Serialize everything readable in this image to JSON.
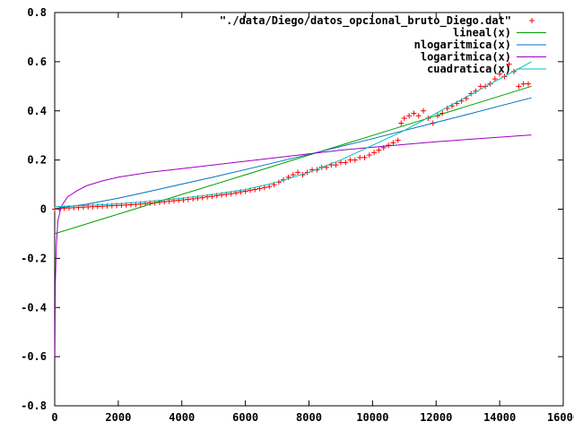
{
  "chart_data": {
    "type": "scatter",
    "xlim": [
      0,
      16000
    ],
    "ylim": [
      -0.8,
      0.8
    ],
    "x_ticks": [
      0,
      2000,
      4000,
      6000,
      8000,
      10000,
      12000,
      14000,
      16000
    ],
    "y_ticks": [
      -0.8,
      -0.6,
      -0.4,
      -0.2,
      0,
      0.2,
      0.4,
      0.6,
      0.8
    ],
    "x_tick_labels": [
      "0",
      "2000",
      "4000",
      "6000",
      "8000",
      "10000",
      "12000",
      "14000",
      "16000"
    ],
    "y_tick_labels": [
      "-0.8",
      "-0.6",
      "-0.4",
      "-0.2",
      "0",
      "0.2",
      "0.4",
      "0.6",
      "0.8"
    ],
    "grid": false,
    "legend_position": "top-right",
    "series": [
      {
        "name": "\"./data/Diego/datos_opcional_bruto_Diego.dat\"",
        "kind": "points",
        "marker": "plus",
        "color": "#ff0000",
        "x": [
          0,
          150,
          300,
          450,
          600,
          750,
          900,
          1050,
          1200,
          1350,
          1500,
          1650,
          1800,
          1950,
          2100,
          2250,
          2400,
          2550,
          2700,
          2850,
          3000,
          3150,
          3300,
          3450,
          3600,
          3750,
          3900,
          4050,
          4200,
          4350,
          4500,
          4650,
          4800,
          4950,
          5100,
          5250,
          5400,
          5550,
          5700,
          5850,
          6000,
          6150,
          6300,
          6450,
          6600,
          6750,
          6900,
          7050,
          7200,
          7350,
          7500,
          7650,
          7800,
          7950,
          8100,
          8250,
          8400,
          8550,
          8700,
          8850,
          9000,
          9150,
          9300,
          9450,
          9600,
          9750,
          9900,
          10050,
          10200,
          10350,
          10500,
          10650,
          10800,
          10900,
          11000,
          11150,
          11300,
          11450,
          11600,
          11750,
          11900,
          12050,
          12200,
          12350,
          12500,
          12650,
          12800,
          12950,
          13100,
          13250,
          13400,
          13550,
          13700,
          13850,
          14000,
          14150,
          14300,
          14450,
          14600,
          14750,
          14900
        ],
        "y": [
          0.0,
          0.002,
          0.004,
          0.005,
          0.006,
          0.007,
          0.008,
          0.009,
          0.01,
          0.011,
          0.012,
          0.013,
          0.014,
          0.015,
          0.016,
          0.017,
          0.018,
          0.019,
          0.021,
          0.023,
          0.025,
          0.026,
          0.028,
          0.03,
          0.032,
          0.034,
          0.036,
          0.038,
          0.04,
          0.042,
          0.045,
          0.047,
          0.05,
          0.052,
          0.055,
          0.058,
          0.06,
          0.063,
          0.066,
          0.07,
          0.073,
          0.077,
          0.08,
          0.084,
          0.088,
          0.092,
          0.1,
          0.11,
          0.12,
          0.13,
          0.14,
          0.15,
          0.14,
          0.15,
          0.16,
          0.16,
          0.17,
          0.17,
          0.18,
          0.18,
          0.19,
          0.19,
          0.2,
          0.2,
          0.21,
          0.21,
          0.22,
          0.23,
          0.24,
          0.25,
          0.26,
          0.27,
          0.28,
          0.35,
          0.37,
          0.38,
          0.39,
          0.38,
          0.4,
          0.37,
          0.35,
          0.38,
          0.39,
          0.41,
          0.42,
          0.43,
          0.44,
          0.45,
          0.47,
          0.48,
          0.5,
          0.5,
          0.51,
          0.53,
          0.55,
          0.54,
          0.59,
          0.56,
          0.5,
          0.51,
          0.51
        ]
      },
      {
        "name": "lineal(x)",
        "kind": "line",
        "color": "#00a000",
        "x": [
          0,
          2000,
          4000,
          6000,
          8000,
          10000,
          12000,
          14000,
          15000
        ],
        "y": [
          -0.1,
          -0.02,
          0.06,
          0.14,
          0.22,
          0.3,
          0.38,
          0.46,
          0.5
        ]
      },
      {
        "name": "nlogaritmica(x)",
        "kind": "line",
        "color": "#0070c0",
        "x": [
          0,
          1000,
          2000,
          3000,
          4000,
          5000,
          6000,
          7000,
          8000,
          9000,
          10000,
          11000,
          12000,
          13000,
          14000,
          15000
        ],
        "y": [
          0.003,
          0.02,
          0.045,
          0.073,
          0.102,
          0.131,
          0.161,
          0.192,
          0.223,
          0.255,
          0.287,
          0.32,
          0.353,
          0.386,
          0.42,
          0.453
        ]
      },
      {
        "name": "logaritmica(x)",
        "kind": "line",
        "color": "#a000c0",
        "x": [
          5,
          20,
          50,
          100,
          200,
          400,
          700,
          1000,
          1500,
          2000,
          3000,
          4000,
          5000,
          6000,
          7000,
          8000,
          9000,
          10000,
          11000,
          12000,
          13000,
          14000,
          15000
        ],
        "y": [
          -0.6,
          -0.3,
          -0.15,
          -0.05,
          0.01,
          0.05,
          0.075,
          0.095,
          0.115,
          0.13,
          0.15,
          0.165,
          0.18,
          0.195,
          0.21,
          0.225,
          0.24,
          0.252,
          0.263,
          0.274,
          0.284,
          0.293,
          0.302
        ]
      },
      {
        "name": "cuadratica(x)",
        "kind": "line",
        "color": "#00c0c0",
        "x": [
          0,
          1000,
          2000,
          3000,
          4000,
          5000,
          6000,
          7000,
          8000,
          9000,
          10000,
          11000,
          12000,
          13000,
          14000,
          15000
        ],
        "y": [
          0.01,
          0.015,
          0.022,
          0.032,
          0.045,
          0.06,
          0.08,
          0.11,
          0.15,
          0.2,
          0.26,
          0.32,
          0.39,
          0.46,
          0.53,
          0.6
        ]
      }
    ]
  }
}
